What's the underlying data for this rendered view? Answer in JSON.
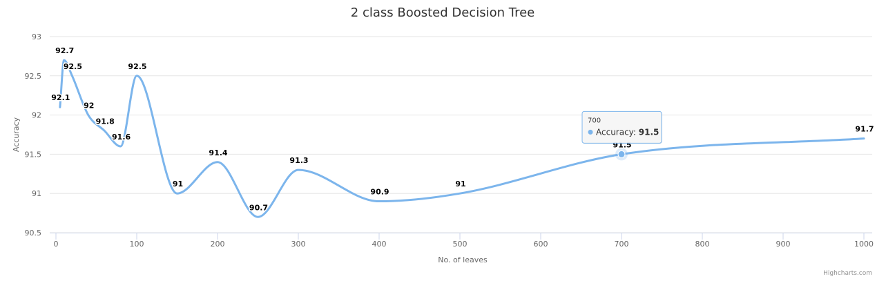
{
  "chart_data": {
    "type": "line",
    "title": "2 class Boosted Decision Tree",
    "xlabel": "No. of leaves",
    "ylabel": "Accuracy",
    "xlim": [
      0,
      1000
    ],
    "ylim": [
      90.5,
      93
    ],
    "x_ticks": [
      "0",
      "100",
      "200",
      "300",
      "400",
      "500",
      "600",
      "700",
      "800",
      "900",
      "1000"
    ],
    "y_ticks": [
      "90.5",
      "91",
      "91.5",
      "92",
      "92.5",
      "93"
    ],
    "grid": true,
    "series": [
      {
        "name": "Accuracy",
        "color": "#7cb5ec",
        "x": [
          5,
          10,
          20,
          40,
          60,
          80,
          100,
          150,
          200,
          250,
          300,
          400,
          500,
          700,
          1000
        ],
        "values": [
          92.1,
          92.7,
          92.5,
          92.0,
          91.8,
          91.6,
          92.5,
          91.0,
          91.4,
          90.7,
          91.3,
          90.9,
          91.0,
          91.5,
          91.7
        ],
        "labels": [
          "92.1",
          "92.7",
          "92.5",
          "92",
          "91.8",
          "91.6",
          "92.5",
          "91",
          "91.4",
          "90.7",
          "91.3",
          "90.9",
          "91",
          "91.5",
          "91.7"
        ]
      }
    ],
    "tooltip": {
      "x": "700",
      "series_name": "Accuracy",
      "value": "91.5",
      "point_index": 13
    }
  },
  "credits": "Highcharts.com"
}
